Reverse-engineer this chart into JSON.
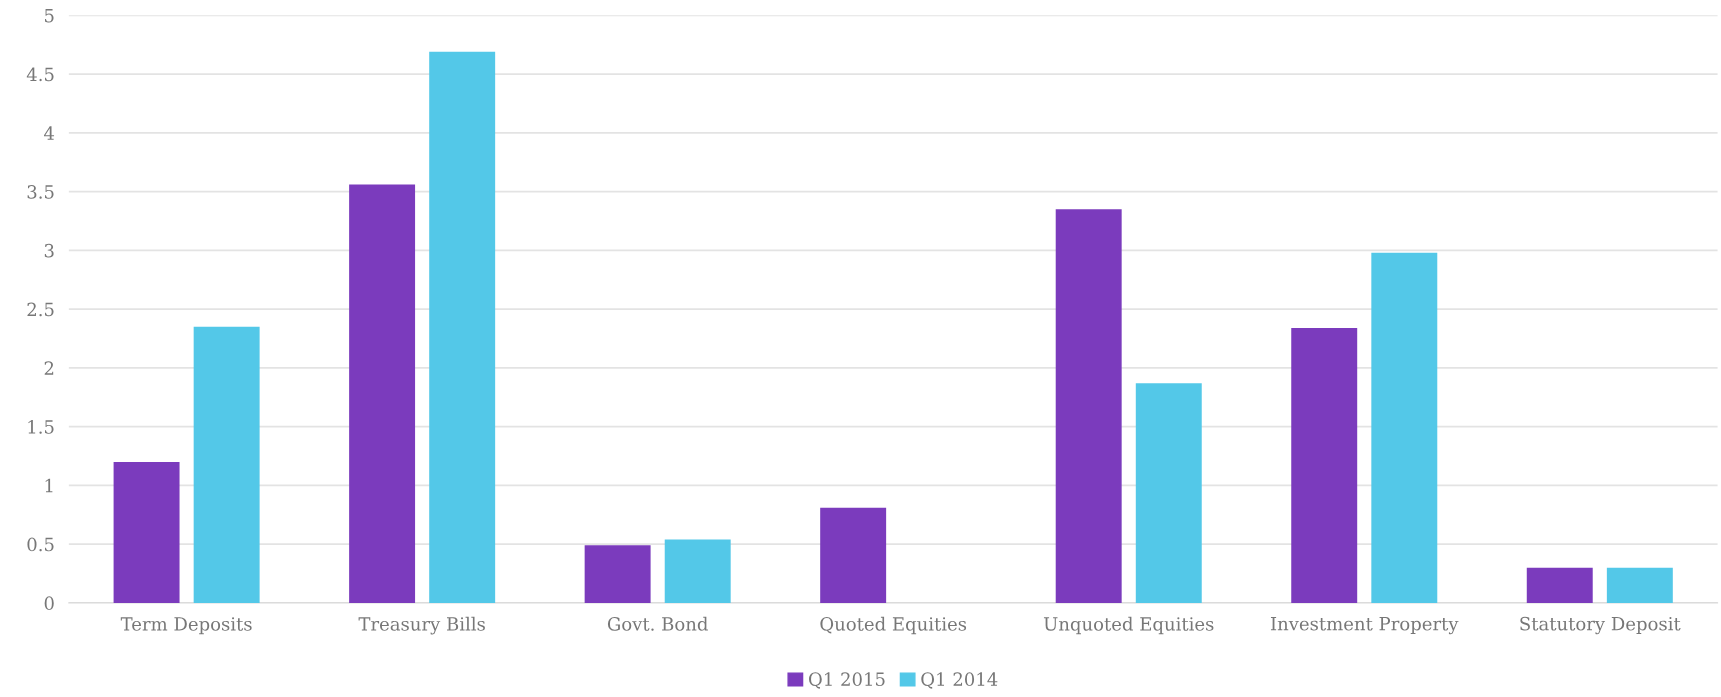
{
  "chart_data": {
    "type": "bar",
    "categories": [
      "Term Deposits",
      "Treasury Bills",
      "Govt. Bond",
      "Quoted Equities",
      "Unquoted Equities",
      "Investment Property",
      "Statutory Deposit"
    ],
    "series": [
      {
        "name": "Q1 2015",
        "color": "#7b3bbd",
        "values": [
          1.2,
          3.56,
          0.49,
          0.81,
          3.35,
          2.34,
          0.3
        ]
      },
      {
        "name": "Q1 2014",
        "color": "#53c8e8",
        "values": [
          2.35,
          4.69,
          0.54,
          0,
          1.87,
          2.98,
          0.3
        ]
      }
    ],
    "ylim": [
      0,
      5
    ],
    "yticks": [
      0,
      0.5,
      1,
      1.5,
      2,
      2.5,
      3,
      3.5,
      4,
      4.5,
      5
    ],
    "grid": "y",
    "legend": "bottom"
  }
}
